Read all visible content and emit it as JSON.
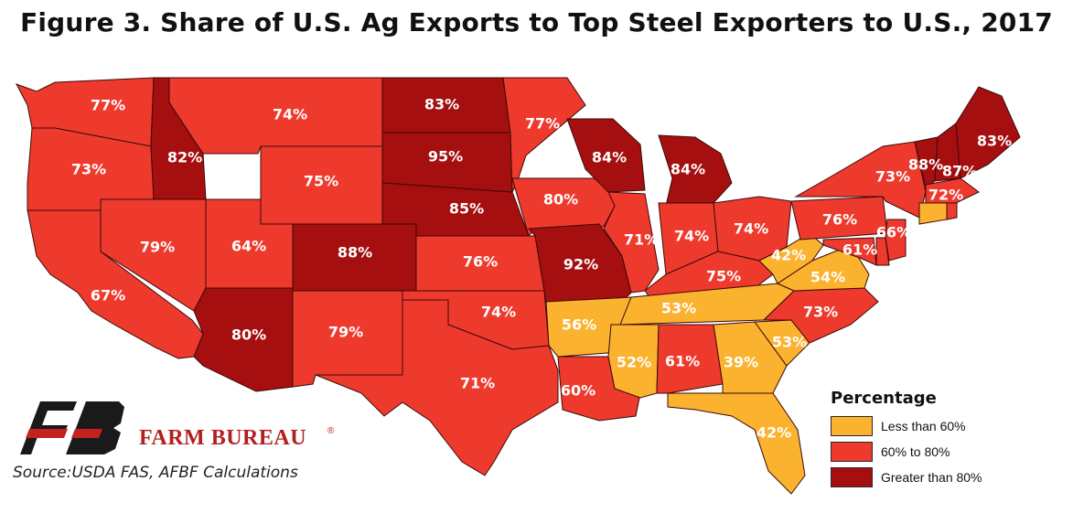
{
  "title": "Figure 3. Share of U.S. Ag Exports to Top Steel Exporters to U.S., 2017",
  "colors": {
    "low": "#FBB22E",
    "mid": "#EE3A2D",
    "high": "#A50F0F",
    "outline": "#3a0a0a"
  },
  "legend": {
    "title": "Percentage",
    "items": [
      {
        "label": "Less than 60%",
        "class": "low"
      },
      {
        "label": "60% to 80%",
        "class": "mid"
      },
      {
        "label": "Greater than 80%",
        "class": "high"
      }
    ]
  },
  "states": [
    {
      "name": "WA",
      "label": "77%",
      "class": "mid"
    },
    {
      "name": "OR",
      "label": "73%",
      "class": "mid"
    },
    {
      "name": "CA",
      "label": "67%",
      "class": "mid"
    },
    {
      "name": "ID",
      "label": "82%",
      "class": "high"
    },
    {
      "name": "NV",
      "label": "79%",
      "class": "mid"
    },
    {
      "name": "MT",
      "label": "74%",
      "class": "mid"
    },
    {
      "name": "WY",
      "label": "75%",
      "class": "mid"
    },
    {
      "name": "UT",
      "label": "64%",
      "class": "mid"
    },
    {
      "name": "AZ",
      "label": "80%",
      "class": "high"
    },
    {
      "name": "CO",
      "label": "88%",
      "class": "high"
    },
    {
      "name": "NM",
      "label": "79%",
      "class": "mid"
    },
    {
      "name": "ND",
      "label": "83%",
      "class": "high"
    },
    {
      "name": "SD",
      "label": "95%",
      "class": "high"
    },
    {
      "name": "NE",
      "label": "85%",
      "class": "high"
    },
    {
      "name": "KS",
      "label": "76%",
      "class": "mid"
    },
    {
      "name": "OK",
      "label": "74%",
      "class": "mid"
    },
    {
      "name": "TX",
      "label": "71%",
      "class": "mid"
    },
    {
      "name": "MN",
      "label": "77%",
      "class": "mid"
    },
    {
      "name": "IA",
      "label": "80%",
      "class": "mid"
    },
    {
      "name": "MO",
      "label": "92%",
      "class": "high"
    },
    {
      "name": "AR",
      "label": "56%",
      "class": "low"
    },
    {
      "name": "LA",
      "label": "60%",
      "class": "mid"
    },
    {
      "name": "WI",
      "label": "84%",
      "class": "high"
    },
    {
      "name": "IL",
      "label": "71%",
      "class": "mid"
    },
    {
      "name": "MI",
      "label": "84%",
      "class": "high"
    },
    {
      "name": "IN",
      "label": "74%",
      "class": "mid"
    },
    {
      "name": "OH",
      "label": "74%",
      "class": "mid"
    },
    {
      "name": "KY",
      "label": "75%",
      "class": "mid"
    },
    {
      "name": "TN",
      "label": "53%",
      "class": "low"
    },
    {
      "name": "MS",
      "label": "52%",
      "class": "low"
    },
    {
      "name": "AL",
      "label": "61%",
      "class": "mid"
    },
    {
      "name": "GA",
      "label": "39%",
      "class": "low"
    },
    {
      "name": "FL",
      "label": "42%",
      "class": "low"
    },
    {
      "name": "SC",
      "label": "53%",
      "class": "low"
    },
    {
      "name": "NC",
      "label": "73%",
      "class": "mid"
    },
    {
      "name": "VA",
      "label": "54%",
      "class": "low"
    },
    {
      "name": "WV",
      "label": "42%",
      "class": "low"
    },
    {
      "name": "PA",
      "label": "76%",
      "class": "mid"
    },
    {
      "name": "NY",
      "label": "73%",
      "class": "mid"
    },
    {
      "name": "VT",
      "label": "88%",
      "class": "high"
    },
    {
      "name": "NH",
      "label": "87%",
      "class": "high"
    },
    {
      "name": "ME",
      "label": "83%",
      "class": "high"
    },
    {
      "name": "MA",
      "label": "72%",
      "class": "mid"
    },
    {
      "name": "CT",
      "label": "",
      "class": "low"
    },
    {
      "name": "RI",
      "label": "",
      "class": "mid"
    },
    {
      "name": "NJ",
      "label": "66%",
      "class": "mid"
    },
    {
      "name": "MD",
      "label": "61%",
      "class": "mid"
    },
    {
      "name": "DE",
      "label": "",
      "class": "mid"
    }
  ],
  "logo": {
    "brand": "FARM BUREAU",
    "registered": "®"
  },
  "source": "Source:USDA FAS, AFBF Calculations"
}
